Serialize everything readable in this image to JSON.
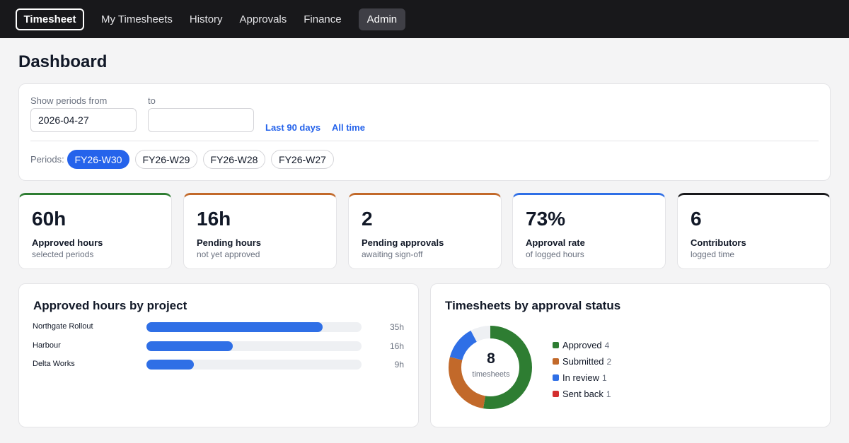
{
  "nav": {
    "brand": "Timesheet",
    "links": [
      "My Timesheets",
      "History",
      "Approvals",
      "Finance"
    ],
    "active": "Admin"
  },
  "page": {
    "title": "Dashboard"
  },
  "filters": {
    "from_label": "Show periods from",
    "from_value": "2026-04-27",
    "to_label": "to",
    "to_value": "",
    "quick_links": [
      "Last 90 days",
      "All time"
    ],
    "periods_label": "Periods:",
    "periods": [
      {
        "label": "FY26-W30",
        "selected": true
      },
      {
        "label": "FY26-W29",
        "selected": false
      },
      {
        "label": "FY26-W28",
        "selected": false
      },
      {
        "label": "FY26-W27",
        "selected": false
      }
    ]
  },
  "stats": [
    {
      "value": "60h",
      "title": "Approved hours",
      "subtitle": "selected periods",
      "accent": "#2e7d32"
    },
    {
      "value": "16h",
      "title": "Pending hours",
      "subtitle": "not yet approved",
      "accent": "#c2692a"
    },
    {
      "value": "2",
      "title": "Pending approvals",
      "subtitle": "awaiting sign-off",
      "accent": "#c2692a"
    },
    {
      "value": "73%",
      "title": "Approval rate",
      "subtitle": "of logged hours",
      "accent": "#2f6fe6"
    },
    {
      "value": "6",
      "title": "Contributors",
      "subtitle": "logged time",
      "accent": "#18181b"
    }
  ],
  "projects_panel": {
    "title": "Approved hours by project",
    "rows": [
      {
        "label": "Northgate Rollout",
        "value": "35h",
        "hours": 35,
        "fraction": 0.82
      },
      {
        "label": "Harbour",
        "value": "16h",
        "hours": 16,
        "fraction": 0.4
      },
      {
        "label": "Delta Works",
        "value": "9h",
        "hours": 9,
        "fraction": 0.22
      }
    ]
  },
  "status_panel": {
    "title": "Timesheets by approval status",
    "total": "8",
    "total_label": "timesheets",
    "remainder_color": "#eef0f3",
    "items": [
      {
        "label": "Approved",
        "count": 4,
        "color": "#2e7d32"
      },
      {
        "label": "Submitted",
        "count": 2,
        "color": "#c2692a"
      },
      {
        "label": "In review",
        "count": 1,
        "color": "#2f6fe6"
      },
      {
        "label": "Sent back",
        "count": 1,
        "color": "#d32f2f"
      }
    ]
  }
}
